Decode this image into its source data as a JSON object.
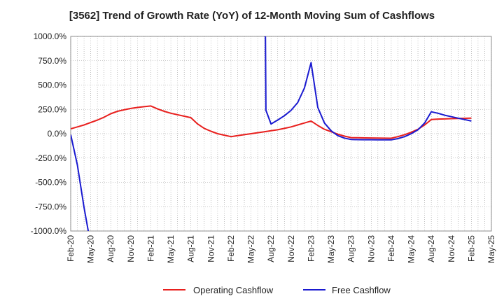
{
  "chart_data": {
    "type": "line",
    "title": "[3562]  Trend of Growth Rate (YoY) of 12-Month Moving Sum of Cashflows",
    "xlabel": "",
    "ylabel": "",
    "ylim": [
      -1000,
      1000
    ],
    "y_ticks": [
      "1000.0%",
      "750.0%",
      "500.0%",
      "250.0%",
      "0.0%",
      "-250.0%",
      "-500.0%",
      "-750.0%",
      "-1000.0%"
    ],
    "x_ticks": [
      "Feb-20",
      "May-20",
      "Aug-20",
      "Nov-20",
      "Feb-21",
      "May-21",
      "Aug-21",
      "Nov-21",
      "Feb-22",
      "May-22",
      "Aug-22",
      "Nov-22",
      "Feb-23",
      "May-23",
      "Aug-23",
      "Nov-23",
      "Feb-24",
      "May-24",
      "Aug-24",
      "Nov-24",
      "Feb-25",
      "May-25"
    ],
    "grid": true,
    "legend_position": "bottom",
    "series": [
      {
        "name": "Operating Cashflow",
        "color": "#e8201e",
        "points": [
          [
            "2020-02",
            50
          ],
          [
            "2020-03",
            70
          ],
          [
            "2020-04",
            90
          ],
          [
            "2020-05",
            115
          ],
          [
            "2020-06",
            140
          ],
          [
            "2020-07",
            170
          ],
          [
            "2020-08",
            205
          ],
          [
            "2020-09",
            230
          ],
          [
            "2020-10",
            245
          ],
          [
            "2020-11",
            260
          ],
          [
            "2020-12",
            270
          ],
          [
            "2021-01",
            278
          ],
          [
            "2021-02",
            285
          ],
          [
            "2021-03",
            255
          ],
          [
            "2021-04",
            230
          ],
          [
            "2021-05",
            210
          ],
          [
            "2021-06",
            195
          ],
          [
            "2021-07",
            180
          ],
          [
            "2021-08",
            165
          ],
          [
            "2021-09",
            100
          ],
          [
            "2021-10",
            55
          ],
          [
            "2021-11",
            25
          ],
          [
            "2021-12",
            0
          ],
          [
            "2022-01",
            -15
          ],
          [
            "2022-02",
            -30
          ],
          [
            "2022-03",
            -20
          ],
          [
            "2022-04",
            -10
          ],
          [
            "2022-05",
            0
          ],
          [
            "2022-06",
            10
          ],
          [
            "2022-07",
            20
          ],
          [
            "2022-08",
            30
          ],
          [
            "2022-09",
            40
          ],
          [
            "2022-10",
            55
          ],
          [
            "2022-11",
            70
          ],
          [
            "2022-12",
            90
          ],
          [
            "2023-01",
            110
          ],
          [
            "2023-02",
            130
          ],
          [
            "2023-03",
            85
          ],
          [
            "2023-04",
            45
          ],
          [
            "2023-05",
            20
          ],
          [
            "2023-06",
            -5
          ],
          [
            "2023-07",
            -25
          ],
          [
            "2023-08",
            -40
          ],
          [
            "2023-09",
            -42
          ],
          [
            "2023-10",
            -43
          ],
          [
            "2023-11",
            -44
          ],
          [
            "2023-12",
            -45
          ],
          [
            "2024-01",
            -46
          ],
          [
            "2024-02",
            -47
          ],
          [
            "2024-03",
            -30
          ],
          [
            "2024-04",
            -10
          ],
          [
            "2024-05",
            15
          ],
          [
            "2024-06",
            45
          ],
          [
            "2024-07",
            90
          ],
          [
            "2024-08",
            145
          ],
          [
            "2024-09",
            150
          ],
          [
            "2024-10",
            152
          ],
          [
            "2024-11",
            155
          ],
          [
            "2024-12",
            157
          ],
          [
            "2025-01",
            158
          ],
          [
            "2025-02",
            160
          ]
        ]
      },
      {
        "name": "Free Cashflow",
        "color": "#1a1ad0",
        "segments": [
          [
            [
              "2020-02",
              -10
            ],
            [
              "2020-03",
              -320
            ],
            [
              "2020-04",
              -760
            ],
            [
              "2020-04-20",
              -1000
            ]
          ],
          [
            [
              "2022-07",
              1000
            ],
            [
              "2022-07-06",
              1000
            ],
            [
              "2022-07-08",
              240
            ],
            [
              "2022-08",
              100
            ],
            [
              "2022-09",
              140
            ],
            [
              "2022-10",
              185
            ],
            [
              "2022-11",
              240
            ],
            [
              "2022-12",
              320
            ],
            [
              "2023-01",
              470
            ],
            [
              "2023-02",
              730
            ],
            [
              "2023-03",
              270
            ],
            [
              "2023-04",
              110
            ],
            [
              "2023-05",
              30
            ],
            [
              "2023-06",
              -20
            ],
            [
              "2023-07",
              -45
            ],
            [
              "2023-08",
              -60
            ],
            [
              "2023-09",
              -61
            ],
            [
              "2023-10",
              -62
            ],
            [
              "2023-11",
              -62
            ],
            [
              "2023-12",
              -63
            ],
            [
              "2024-01",
              -63
            ],
            [
              "2024-02",
              -63
            ],
            [
              "2024-03",
              -50
            ],
            [
              "2024-04",
              -30
            ],
            [
              "2024-05",
              0
            ],
            [
              "2024-06",
              40
            ],
            [
              "2024-07",
              110
            ],
            [
              "2024-08",
              225
            ],
            [
              "2024-09",
              210
            ],
            [
              "2024-10",
              190
            ],
            [
              "2024-11",
              175
            ],
            [
              "2024-12",
              160
            ],
            [
              "2025-01",
              145
            ],
            [
              "2025-02",
              130
            ]
          ]
        ]
      }
    ]
  }
}
